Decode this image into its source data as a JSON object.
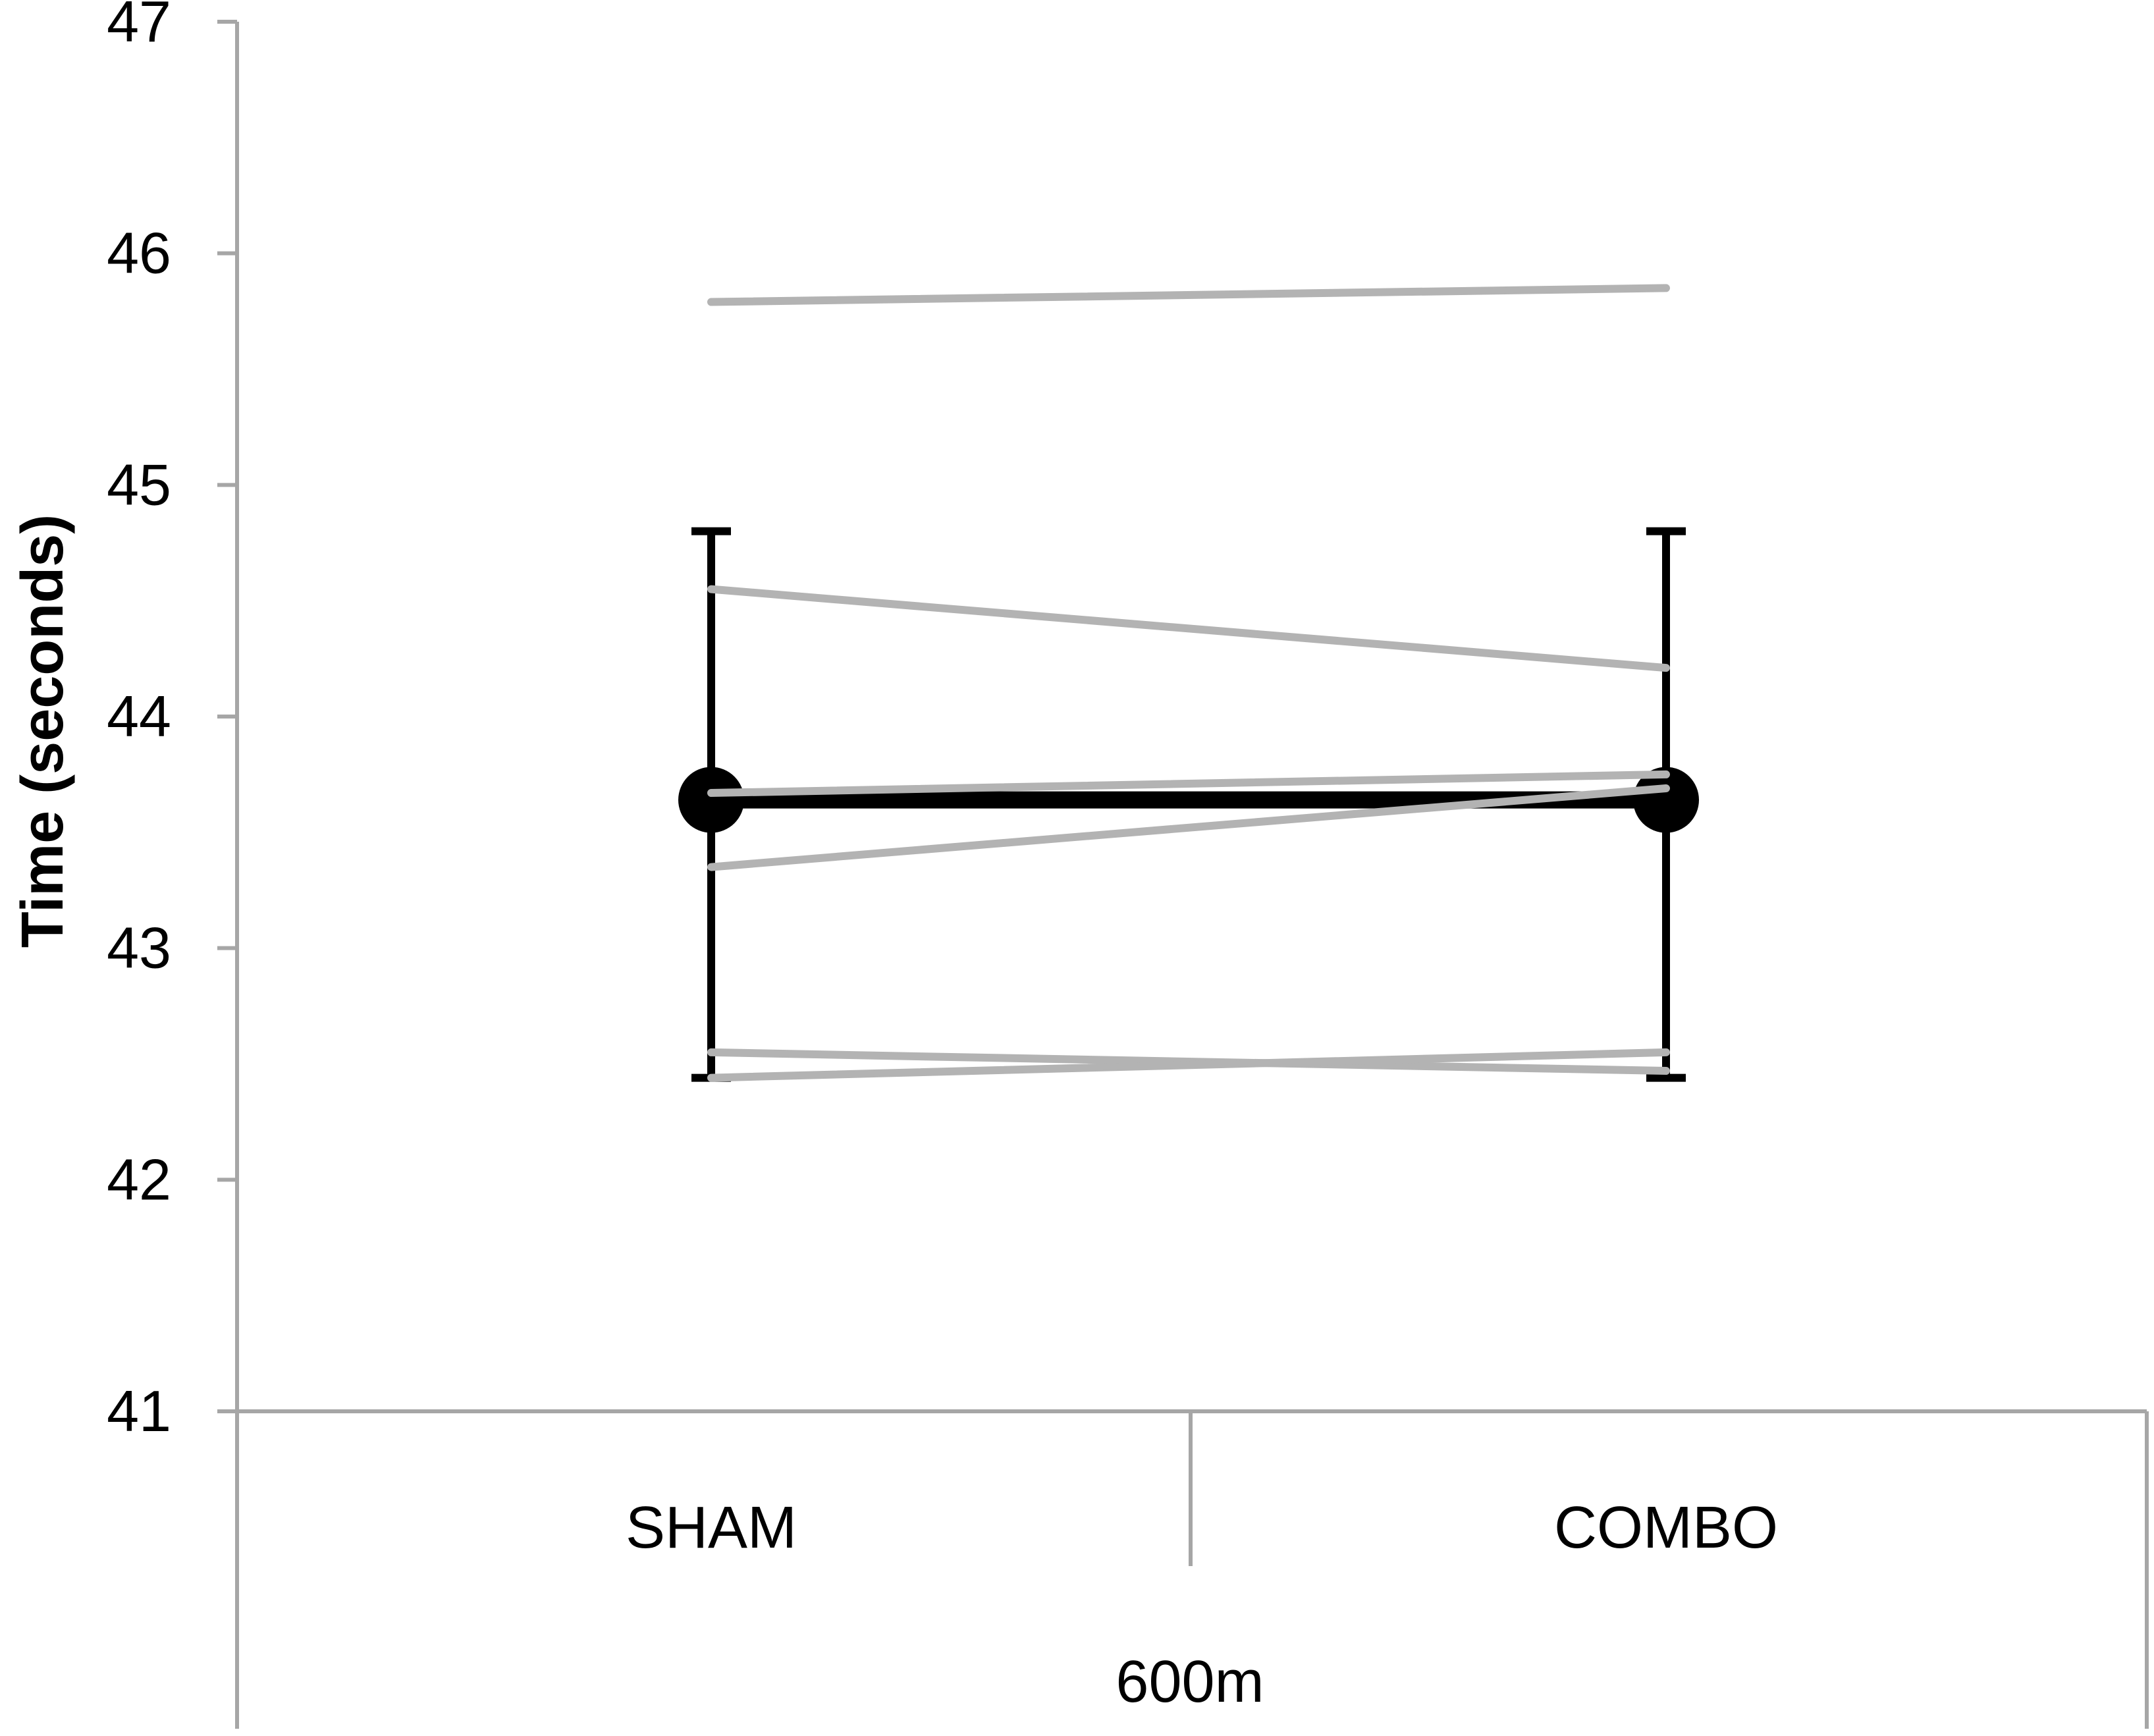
{
  "chart_data": {
    "type": "line",
    "title": "",
    "xlabel": "600m",
    "ylabel": "Time (seconds)",
    "categories": [
      "SHAM",
      "COMBO"
    ],
    "ylim": [
      41,
      47
    ],
    "yticks": [
      41,
      42,
      43,
      44,
      45,
      46,
      47
    ],
    "grid": false,
    "mean": {
      "values": [
        43.64,
        43.64
      ],
      "error_low": [
        42.44,
        42.44
      ],
      "error_high": [
        44.8,
        44.8
      ],
      "color": "#000000"
    },
    "individuals": [
      {
        "values": [
          45.79,
          45.85
        ]
      },
      {
        "values": [
          44.55,
          44.21
        ]
      },
      {
        "values": [
          43.67,
          43.75
        ]
      },
      {
        "values": [
          43.35,
          43.69
        ]
      },
      {
        "values": [
          42.55,
          42.47
        ]
      },
      {
        "values": [
          42.44,
          42.55
        ]
      }
    ],
    "individual_color": "#b3b3b3",
    "axis_color": "#a6a6a6"
  }
}
